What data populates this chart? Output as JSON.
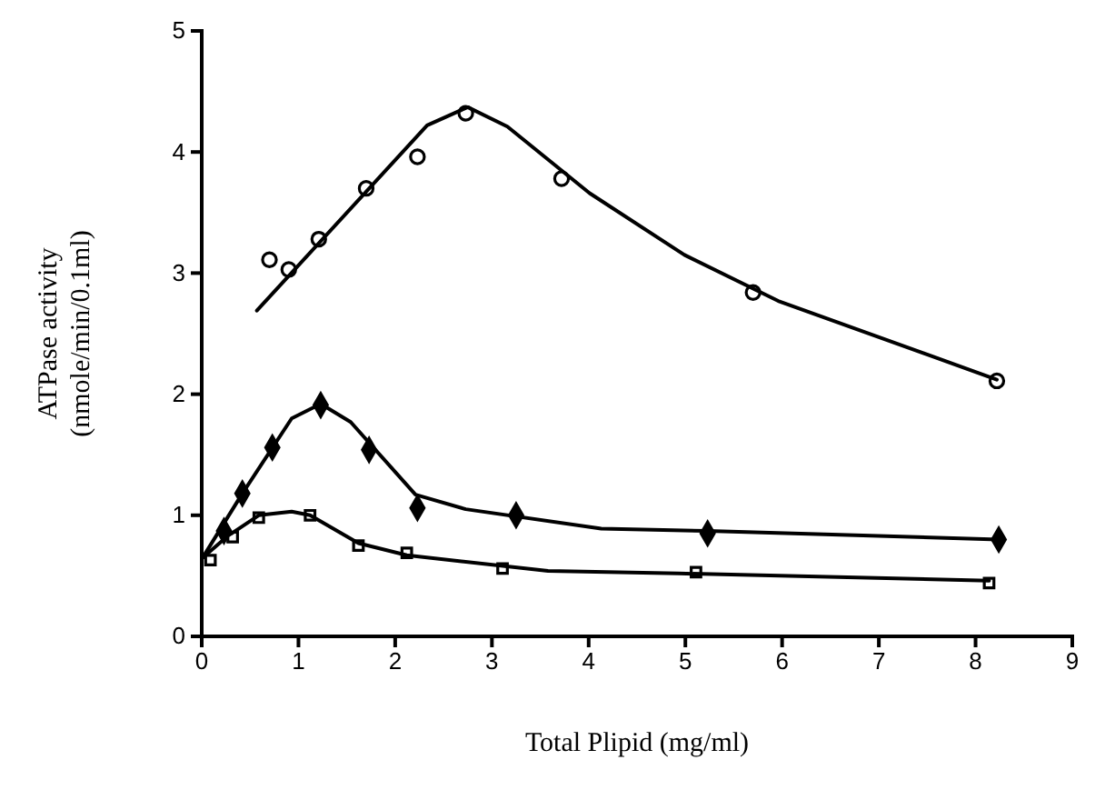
{
  "chart_data": {
    "type": "scatter",
    "xlabel": "Total Plipid (mg/ml)",
    "ylabel": "ATPase activity\n(nmole/min/0.1ml)",
    "xlim": [
      0,
      9
    ],
    "ylim": [
      0,
      5
    ],
    "xticks": [
      0,
      1,
      2,
      3,
      4,
      5,
      6,
      7,
      8,
      9
    ],
    "yticks": [
      0,
      1,
      2,
      3,
      4,
      5
    ],
    "grid": false,
    "series": [
      {
        "marker": "circle",
        "color": "#000000",
        "x": [
          0.7,
          0.9,
          1.21,
          1.7,
          2.23,
          2.73,
          3.72,
          5.7,
          8.22
        ],
        "values": [
          3.11,
          3.03,
          3.28,
          3.7,
          3.96,
          4.32,
          3.78,
          2.84,
          2.11
        ]
      },
      {
        "type": "line",
        "marker": "none",
        "line_style": "solid",
        "color": "#000000",
        "x": [
          0.57,
          2.33,
          2.75,
          3.16,
          4.01,
          4.99,
          5.96,
          8.22
        ],
        "values": [
          2.69,
          4.22,
          4.37,
          4.21,
          3.66,
          3.15,
          2.77,
          2.12
        ]
      },
      {
        "marker": "diamond",
        "color": "#000000",
        "x": [
          0.23,
          0.42,
          0.73,
          1.23,
          1.73,
          2.23,
          3.25,
          5.23,
          8.24
        ],
        "values": [
          0.87,
          1.18,
          1.56,
          1.91,
          1.54,
          1.06,
          1.0,
          0.85,
          0.8
        ]
      },
      {
        "type": "line",
        "marker": "none",
        "line_style": "solid",
        "color": "#000000",
        "x": [
          0.01,
          0.42,
          0.93,
          1.23,
          1.54,
          2.21,
          2.73,
          4.13,
          5.23,
          8.24
        ],
        "values": [
          0.65,
          1.18,
          1.8,
          1.92,
          1.77,
          1.17,
          1.05,
          0.89,
          0.87,
          0.8
        ]
      },
      {
        "marker": "square",
        "color": "#000000",
        "x": [
          0.09,
          0.32,
          0.59,
          1.12,
          1.62,
          2.12,
          3.11,
          5.11,
          8.14
        ],
        "values": [
          0.63,
          0.82,
          0.98,
          1.0,
          0.75,
          0.69,
          0.56,
          0.53,
          0.44
        ]
      },
      {
        "type": "line",
        "marker": "none",
        "line_style": "solid",
        "color": "#000000",
        "x": [
          0.01,
          0.27,
          0.59,
          0.93,
          1.12,
          1.62,
          2.12,
          3.58,
          4.93,
          8.14
        ],
        "values": [
          0.65,
          0.83,
          1.0,
          1.03,
          1.0,
          0.77,
          0.67,
          0.54,
          0.52,
          0.46
        ]
      }
    ]
  }
}
